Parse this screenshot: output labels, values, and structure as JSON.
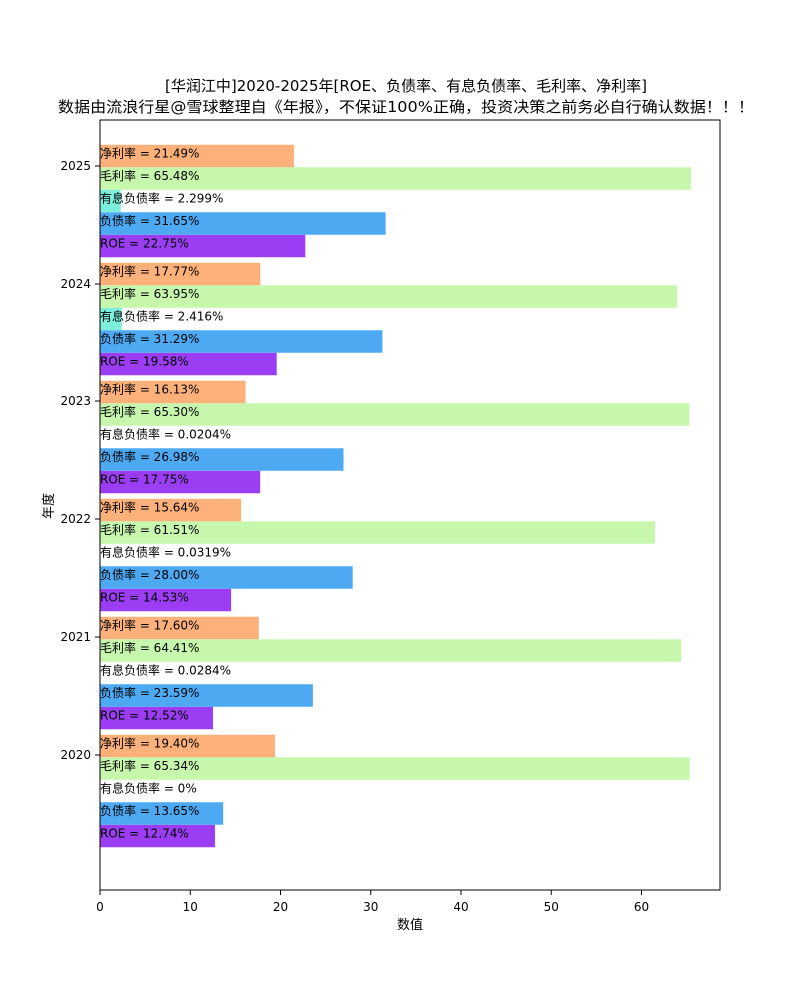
{
  "chart_data": {
    "type": "bar",
    "orientation": "horizontal",
    "title": "[华润江中]2020-2025年[ROE、负债率、有息负债率、毛利率、净利率]",
    "subtitle": "数据由流浪行星@雪球整理自《年报》，不保证100%正确，投资决策之前务必自行确认数据！！！",
    "xlabel": "数值",
    "ylabel": "年度",
    "xlim": [
      0,
      68.7
    ],
    "xticks": [
      0,
      10,
      20,
      30,
      40,
      50,
      60
    ],
    "categories": [
      "2020",
      "2021",
      "2022",
      "2023",
      "2024",
      "2025"
    ],
    "grid": false,
    "series": [
      {
        "name": "ROE",
        "color": "#9b3ef3",
        "values": [
          12.74,
          12.52,
          14.53,
          17.75,
          19.58,
          22.75
        ],
        "labels": [
          "ROE = 12.74%",
          "ROE = 12.52%",
          "ROE = 14.53%",
          "ROE = 17.75%",
          "ROE = 19.58%",
          "ROE = 22.75%"
        ]
      },
      {
        "name": "负债率",
        "color": "#4ea9f3",
        "values": [
          13.65,
          23.59,
          28.0,
          26.98,
          31.29,
          31.65
        ],
        "labels": [
          "负债率 = 13.65%",
          "负债率 = 23.59%",
          "负债率 = 28.00%",
          "负债率 = 26.98%",
          "负债率 = 31.29%",
          "负债率 = 31.65%"
        ]
      },
      {
        "name": "有息负债率",
        "color": "#7deedb",
        "values": [
          0,
          0.0284,
          0.0319,
          0.0204,
          2.416,
          2.299
        ],
        "labels": [
          "有息负债率 = 0%",
          "有息负债率 = 0.0284%",
          "有息负债率 = 0.0319%",
          "有息负债率 = 0.0204%",
          "有息负债率 = 2.416%",
          "有息负债率 = 2.299%"
        ]
      },
      {
        "name": "毛利率",
        "color": "#c7f7ad",
        "values": [
          65.34,
          64.41,
          61.51,
          65.3,
          63.95,
          65.48
        ],
        "labels": [
          "毛利率 = 65.34%",
          "毛利率 = 64.41%",
          "毛利率 = 61.51%",
          "毛利率 = 65.30%",
          "毛利率 = 63.95%",
          "毛利率 = 65.48%"
        ]
      },
      {
        "name": "净利率",
        "color": "#fcb07a",
        "values": [
          19.4,
          17.6,
          15.64,
          16.13,
          17.77,
          21.49
        ],
        "labels": [
          "净利率 = 19.40%",
          "净利率 = 17.60%",
          "净利率 = 15.64%",
          "净利率 = 16.13%",
          "净利率 = 17.77%",
          "净利率 = 21.49%"
        ]
      }
    ]
  }
}
